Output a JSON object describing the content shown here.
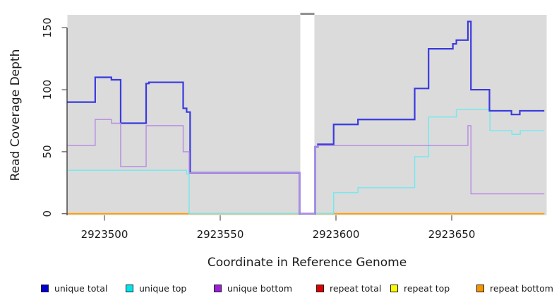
{
  "chart_data": {
    "type": "line",
    "subtype": "step-after",
    "title": "",
    "xlabel": "Coordinate in Reference Genome",
    "ylabel": "Read Coverage Depth",
    "xlim": [
      2923484,
      2923691
    ],
    "xend": 2923690,
    "ylim": [
      0,
      160.4
    ],
    "xticks": [
      2923500,
      2923550,
      2923600,
      2923650
    ],
    "yticks": [
      0,
      50,
      100,
      150
    ],
    "grid": false,
    "plot_bg": "#DBDBDB",
    "axis_color": "#222222",
    "tick_color": "#555555",
    "gap": {
      "x0": 2923584.6,
      "x1": 2923590.7,
      "fill": "#FFFFFF",
      "cap_color": "#8B8B8B"
    },
    "series": [
      {
        "name": "repeat total",
        "line_color": "#DF0000",
        "width": 1.4,
        "points": [
          [
            2923484,
            0
          ]
        ]
      },
      {
        "name": "repeat top",
        "line_color": "#FBFB00",
        "width": 1.4,
        "points": [
          [
            2923484,
            0
          ]
        ]
      },
      {
        "name": "repeat bottom",
        "line_color": "#FF9E00",
        "width": 1.8,
        "points": [
          [
            2923484,
            0
          ]
        ]
      },
      {
        "name": "unique top",
        "line_color": "#70E9EF",
        "width": 1.4,
        "points": [
          [
            2923484,
            35
          ],
          [
            2923535.5,
            32
          ],
          [
            2923536.6,
            0
          ],
          [
            2923599,
            17
          ],
          [
            2923609.5,
            21
          ],
          [
            2923634,
            46
          ],
          [
            2923640,
            78
          ],
          [
            2923652,
            84
          ],
          [
            2923666.5,
            67
          ],
          [
            2923676,
            64
          ],
          [
            2923679.6,
            67
          ]
        ]
      },
      {
        "name": "unique total",
        "line_color": "#3A3ADF",
        "width": 2.2,
        "points": [
          [
            2923484,
            90
          ],
          [
            2923496,
            110
          ],
          [
            2923503,
            108
          ],
          [
            2923507,
            73
          ],
          [
            2923518,
            105
          ],
          [
            2923519.2,
            106
          ],
          [
            2923534,
            85
          ],
          [
            2923535.5,
            82
          ],
          [
            2923537,
            33
          ],
          [
            2923584.3,
            0
          ],
          [
            2923591,
            54
          ],
          [
            2923592.2,
            56
          ],
          [
            2923599,
            72
          ],
          [
            2923609.5,
            76
          ],
          [
            2923634,
            101
          ],
          [
            2923640,
            133
          ],
          [
            2923650.5,
            137
          ],
          [
            2923652,
            140
          ],
          [
            2923657,
            155
          ],
          [
            2923658.3,
            100
          ],
          [
            2923666.3,
            83
          ],
          [
            2923675.8,
            80
          ],
          [
            2923679.4,
            83
          ]
        ]
      },
      {
        "name": "unique bottom",
        "line_color": "#B78AE3",
        "width": 1.4,
        "points": [
          [
            2923484,
            55
          ],
          [
            2923496,
            76
          ],
          [
            2923503,
            73
          ],
          [
            2923507,
            38
          ],
          [
            2923518,
            71
          ],
          [
            2923534,
            50
          ],
          [
            2923536.6,
            33
          ],
          [
            2923584.3,
            0
          ],
          [
            2923591,
            54
          ],
          [
            2923592.2,
            55
          ],
          [
            2923657,
            71
          ],
          [
            2923658.3,
            16
          ]
        ]
      }
    ],
    "legend": {
      "position": "bottom",
      "x_offsets": [
        58,
        178,
        303,
        448,
        553,
        675
      ],
      "items": [
        {
          "label": "unique total",
          "color": "#0000D0"
        },
        {
          "label": "unique top",
          "color": "#00E5EF"
        },
        {
          "label": "unique bottom",
          "color": "#9C1FD9"
        },
        {
          "label": "repeat total",
          "color": "#DF0000"
        },
        {
          "label": "repeat top",
          "color": "#FBFB00"
        },
        {
          "label": "repeat bottom",
          "color": "#F79500"
        }
      ]
    }
  }
}
